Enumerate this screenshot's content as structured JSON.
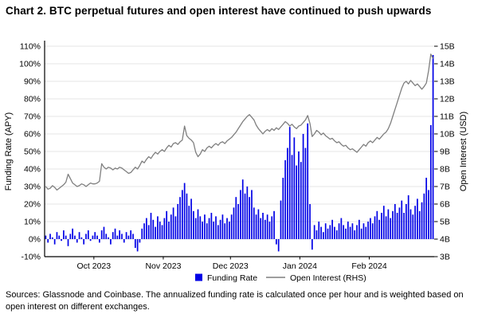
{
  "title": "Chart 2. BTC perpetual futures and open interest have continued to push upwards",
  "footer": "Sources: Glassnode and Coinbase. The annualized funding rate is calculated once per hour and is weighted based on open interest on different exchanges.",
  "colors": {
    "funding_bar": "#0000e6",
    "open_interest_line": "#7f7f7f",
    "gridline": "#e4e4e4",
    "axis": "#000000"
  },
  "chart_data": {
    "type": "bar",
    "note": "dual-axis chart: bars = funding rate (left axis, %APY), line = open interest (right axis, USD billions); x spans Sep 2023 - Mar 2024",
    "x_axis": {
      "tick_labels": [
        "Oct 2023",
        "Nov 2023",
        "Dec 2023",
        "Jan 2024",
        "Feb 2024"
      ],
      "tick_positions_days": [
        22,
        53,
        83,
        114,
        145
      ],
      "domain_days": [
        0,
        174
      ]
    },
    "left_axis": {
      "label": "Funding Rate (APY)",
      "min": -10,
      "max": 110,
      "step": 10,
      "tick_values": [
        -10,
        0,
        10,
        20,
        30,
        40,
        50,
        60,
        70,
        80,
        90,
        100,
        110
      ],
      "tick_labels": [
        "-10%",
        "0%",
        "10%",
        "20%",
        "30%",
        "40%",
        "50%",
        "60%",
        "70%",
        "80%",
        "90%",
        "100%",
        "110%"
      ]
    },
    "right_axis": {
      "label": "Open Interest (USD)",
      "min": 3,
      "max": 15,
      "step": 1,
      "tick_values": [
        3,
        4,
        5,
        6,
        7,
        8,
        9,
        10,
        11,
        12,
        13,
        14,
        15
      ],
      "tick_labels": [
        "3B",
        "4B",
        "5B",
        "6B",
        "7B",
        "8B",
        "9B",
        "10B",
        "11B",
        "12B",
        "13B",
        "14B",
        "15B"
      ]
    },
    "legend": [
      {
        "label": "Funding Rate",
        "swatch": "square",
        "color": "#0000e6"
      },
      {
        "label": "Open Interest (RHS)",
        "swatch": "line",
        "color": "#7f7f7f"
      }
    ],
    "series": [
      {
        "name": "Funding Rate",
        "axis": "left",
        "render": "bar",
        "color": "#0000e6",
        "values": [
          2,
          -2,
          3,
          1,
          -3,
          4,
          2,
          -1,
          5,
          2,
          -4,
          3,
          6,
          2,
          -2,
          4,
          1,
          -3,
          3,
          5,
          -1,
          2,
          4,
          2,
          -2,
          5,
          7,
          3,
          1,
          -3,
          4,
          6,
          2,
          5,
          3,
          -2,
          4,
          2,
          5,
          3,
          -5,
          -7,
          -2,
          6,
          9,
          12,
          8,
          15,
          11,
          7,
          13,
          10,
          8,
          12,
          16,
          10,
          14,
          18,
          13,
          20,
          24,
          28,
          32,
          26,
          19,
          23,
          16,
          12,
          17,
          13,
          10,
          14,
          9,
          12,
          15,
          10,
          13,
          8,
          11,
          14,
          9,
          12,
          10,
          14,
          18,
          24,
          20,
          28,
          34,
          26,
          30,
          24,
          28,
          18,
          14,
          17,
          12,
          15,
          11,
          14,
          10,
          13,
          16,
          -3,
          -7,
          22,
          35,
          45,
          52,
          64,
          48,
          58,
          42,
          50,
          44,
          60,
          52,
          66,
          20,
          -6,
          8,
          5,
          10,
          7,
          4,
          9,
          6,
          8,
          11,
          7,
          5,
          9,
          12,
          8,
          6,
          10,
          7,
          9,
          5,
          8,
          11,
          6,
          9,
          7,
          10,
          12,
          9,
          13,
          16,
          11,
          15,
          19,
          13,
          17,
          12,
          16,
          20,
          15,
          18,
          22,
          15,
          20,
          25,
          17,
          14,
          19,
          23,
          16,
          21,
          26,
          35,
          28,
          65,
          105
        ]
      },
      {
        "name": "Open Interest",
        "axis": "right",
        "render": "line",
        "color": "#7f7f7f",
        "values": [
          7.0,
          6.85,
          6.9,
          7.05,
          6.95,
          6.8,
          6.9,
          7.0,
          7.1,
          7.25,
          7.7,
          7.45,
          7.2,
          7.1,
          7.0,
          7.05,
          7.15,
          7.1,
          7.0,
          7.1,
          7.2,
          7.15,
          7.15,
          7.2,
          7.3,
          8.3,
          8.1,
          8.0,
          8.1,
          8.05,
          7.95,
          8.05,
          8.0,
          8.1,
          8.05,
          7.95,
          7.85,
          7.75,
          7.8,
          7.95,
          8.1,
          8.0,
          8.2,
          8.45,
          8.35,
          8.55,
          8.7,
          8.6,
          8.8,
          8.95,
          8.85,
          9.0,
          9.1,
          9.0,
          9.2,
          9.35,
          9.25,
          9.45,
          9.5,
          9.4,
          9.55,
          9.65,
          10.45,
          9.9,
          9.75,
          9.65,
          9.5,
          8.95,
          8.7,
          8.85,
          9.1,
          9.0,
          9.2,
          9.3,
          9.2,
          9.35,
          9.45,
          9.35,
          9.5,
          9.55,
          9.45,
          9.6,
          9.7,
          9.8,
          9.95,
          10.1,
          10.3,
          10.5,
          10.7,
          10.85,
          11.0,
          11.1,
          10.95,
          10.8,
          10.5,
          10.3,
          10.15,
          10.0,
          10.15,
          10.25,
          10.15,
          10.3,
          10.2,
          10.35,
          10.25,
          10.4,
          10.55,
          10.7,
          10.6,
          10.45,
          10.55,
          10.4,
          10.3,
          10.45,
          10.5,
          10.65,
          10.8,
          11.05,
          10.6,
          9.85,
          10.0,
          10.2,
          10.1,
          9.95,
          10.05,
          9.9,
          9.8,
          9.7,
          9.75,
          9.6,
          9.5,
          9.55,
          9.4,
          9.3,
          9.35,
          9.2,
          9.1,
          9.15,
          9.05,
          8.95,
          9.1,
          9.25,
          9.4,
          9.3,
          9.5,
          9.6,
          9.5,
          9.65,
          9.8,
          9.7,
          9.85,
          10.0,
          10.1,
          10.3,
          10.6,
          11.0,
          11.4,
          11.8,
          12.2,
          12.6,
          12.9,
          13.0,
          12.85,
          13.05,
          12.9,
          12.75,
          12.85,
          12.7,
          12.55,
          12.7,
          12.9,
          13.6,
          14.55,
          14.3
        ]
      }
    ]
  }
}
